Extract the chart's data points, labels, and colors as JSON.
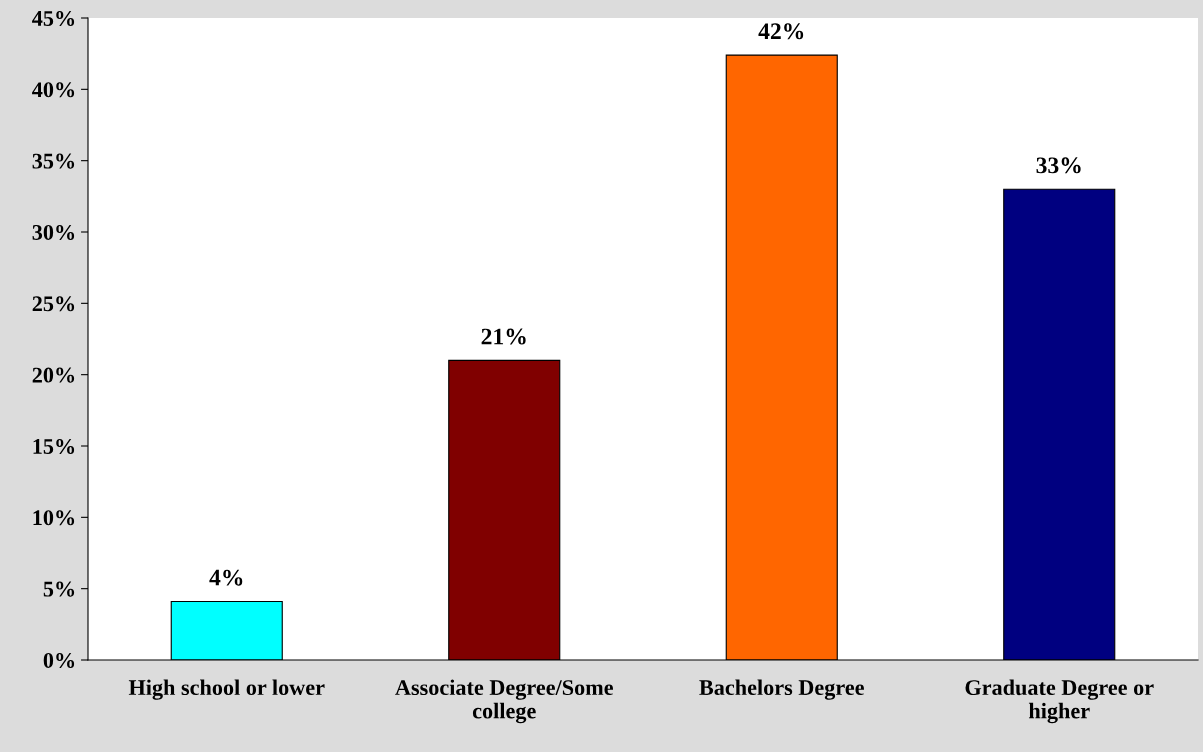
{
  "chart_data": {
    "type": "bar",
    "categories": [
      "High school or lower",
      "Associate Degree/Some\ncollege",
      "Bachelors Degree",
      "Graduate Degree or\nhigher"
    ],
    "values": [
      4.1,
      21,
      42.4,
      33
    ],
    "value_labels": [
      "4%",
      "21%",
      "42%",
      "33%"
    ],
    "colors": [
      "#00ffff",
      "#800000",
      "#ff6600",
      "#000080"
    ],
    "ylim": [
      0,
      45
    ],
    "yticks": [
      {
        "value": 0,
        "label": "0%"
      },
      {
        "value": 5,
        "label": "5%"
      },
      {
        "value": 10,
        "label": "10%"
      },
      {
        "value": 15,
        "label": "15%"
      },
      {
        "value": 20,
        "label": "20%"
      },
      {
        "value": 25,
        "label": "25%"
      },
      {
        "value": 30,
        "label": "30%"
      },
      {
        "value": 35,
        "label": "35%"
      },
      {
        "value": 40,
        "label": "40%"
      },
      {
        "value": 45,
        "label": "45%"
      }
    ],
    "grid": false
  }
}
